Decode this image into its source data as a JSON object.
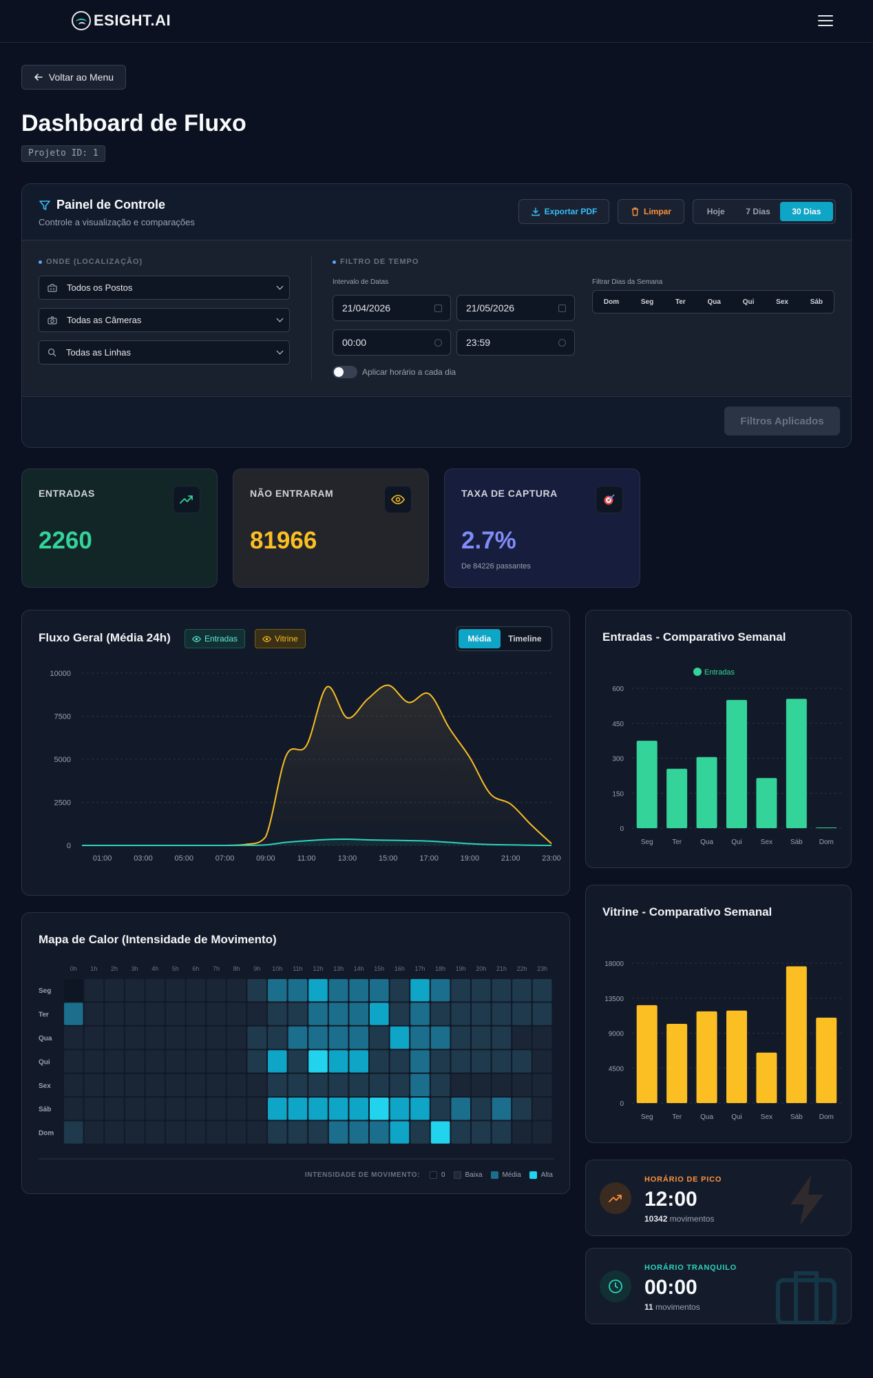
{
  "header": {
    "brand": "ESIGHT.AI",
    "brand_icon": "eye-logo-icon",
    "menu_icon": "hamburger-menu-icon"
  },
  "nav": {
    "back_label": "Voltar ao Menu"
  },
  "page": {
    "title": "Dashboard de Fluxo",
    "project_id": "Projeto ID: 1"
  },
  "control_panel": {
    "title": "Painel de Controle",
    "subtitle": "Controle a visualização e comparações",
    "export_label": "Exportar PDF",
    "clear_label": "Limpar",
    "ranges": [
      "Hoje",
      "7 Dias",
      "30 Dias"
    ],
    "active_range": "30 Dias",
    "location_section": "ONDE (LOCALIZAÇÃO)",
    "post_select": "Todos os Postos",
    "camera_select": "Todas as Câmeras",
    "line_select": "Todas as Linhas",
    "time_section": "FILTRO DE TEMPO",
    "date_interval_label": "Intervalo de Datas",
    "date_start": "21/04/2026",
    "date_end": "21/05/2026",
    "time_start": "00:00",
    "time_end": "23:59",
    "apply_daily_label": "Aplicar horário a cada dia",
    "apply_daily_on": false,
    "weekdays_label": "Filtrar Dias da Semana",
    "weekdays": [
      "Dom",
      "Seg",
      "Ter",
      "Qua",
      "Qui",
      "Sex",
      "Sáb"
    ],
    "applied_label": "Filtros Aplicados"
  },
  "kpis": {
    "entries": {
      "label": "ENTRADAS",
      "value": "2260",
      "color": "#34d399"
    },
    "not_entered": {
      "label": "NÃO ENTRARAM",
      "value": "81966",
      "color": "#fbbf24"
    },
    "capture_rate": {
      "label": "TAXA DE CAPTURA",
      "value": "2.7%",
      "sub": "De 84226 passantes",
      "color": "#818cf8"
    }
  },
  "flow_chart": {
    "title": "Fluxo Geral (Média 24h)",
    "badge_entries": "Entradas",
    "badge_showcase": "Vitrine",
    "modes": [
      "Média",
      "Timeline"
    ],
    "active_mode": "Média"
  },
  "heatmap": {
    "title": "Mapa de Calor (Intensidade de Movimento)",
    "legend_caption": "INTENSIDADE DE MOVIMENTO:",
    "legend": [
      "0",
      "Baixa",
      "Média",
      "Alta"
    ]
  },
  "weekly_entries": {
    "title": "Entradas - Comparativo Semanal",
    "legend": "Entradas"
  },
  "weekly_showcase": {
    "title": "Vitrine - Comparativo Semanal"
  },
  "peak": {
    "caption": "HORÁRIO DE PICO",
    "time": "12:00",
    "count": "10342",
    "unit": "movimentos"
  },
  "quiet": {
    "caption": "HORÁRIO TRANQUILO",
    "time": "00:00",
    "count": "11",
    "unit": "movimentos"
  },
  "chart_data": [
    {
      "type": "area",
      "title": "Fluxo Geral (Média 24h)",
      "x": [
        "00:00",
        "01:00",
        "02:00",
        "03:00",
        "04:00",
        "05:00",
        "06:00",
        "07:00",
        "08:00",
        "09:00",
        "10:00",
        "11:00",
        "12:00",
        "13:00",
        "14:00",
        "15:00",
        "16:00",
        "17:00",
        "18:00",
        "19:00",
        "20:00",
        "21:00",
        "22:00",
        "23:00"
      ],
      "xticks": [
        "01:00",
        "03:00",
        "05:00",
        "07:00",
        "09:00",
        "11:00",
        "13:00",
        "15:00",
        "17:00",
        "19:00",
        "21:00",
        "23:00"
      ],
      "yticks": [
        0,
        2500,
        5000,
        7500,
        10000
      ],
      "ylim": [
        0,
        10000
      ],
      "series": [
        {
          "name": "Vitrine",
          "color": "#fbbf24",
          "values": [
            0,
            0,
            0,
            0,
            0,
            0,
            0,
            0,
            50,
            500,
            5200,
            5800,
            9200,
            7400,
            8500,
            9300,
            8300,
            8800,
            6800,
            5100,
            3000,
            2400,
            1200,
            100
          ]
        },
        {
          "name": "Entradas",
          "color": "#2dd4bf",
          "values": [
            0,
            0,
            0,
            0,
            0,
            0,
            0,
            0,
            5,
            30,
            180,
            270,
            340,
            360,
            320,
            300,
            280,
            250,
            180,
            100,
            50,
            30,
            10,
            0
          ]
        }
      ]
    },
    {
      "type": "heatmap",
      "title": "Mapa de Calor (Intensidade de Movimento)",
      "columns": [
        "0h",
        "1h",
        "2h",
        "3h",
        "4h",
        "5h",
        "6h",
        "7h",
        "8h",
        "9h",
        "10h",
        "11h",
        "12h",
        "13h",
        "14h",
        "15h",
        "16h",
        "17h",
        "18h",
        "19h",
        "20h",
        "21h",
        "22h",
        "23h"
      ],
      "rows": [
        "Seg",
        "Ter",
        "Qua",
        "Qui",
        "Sex",
        "Sáb",
        "Dom"
      ],
      "values": [
        [
          0,
          1,
          1,
          1,
          1,
          1,
          1,
          1,
          1,
          2,
          3,
          3,
          4,
          3,
          3,
          3,
          2,
          4,
          3,
          2,
          2,
          2,
          2,
          2
        ],
        [
          3,
          1,
          1,
          1,
          1,
          1,
          1,
          1,
          1,
          1,
          2,
          2,
          3,
          3,
          3,
          4,
          2,
          3,
          2,
          2,
          2,
          2,
          2,
          2
        ],
        [
          1,
          1,
          1,
          1,
          1,
          1,
          1,
          1,
          1,
          2,
          2,
          3,
          3,
          3,
          3,
          2,
          4,
          3,
          3,
          2,
          2,
          2,
          1,
          1
        ],
        [
          1,
          1,
          1,
          1,
          1,
          1,
          1,
          1,
          1,
          2,
          4,
          2,
          5,
          4,
          4,
          2,
          2,
          3,
          2,
          2,
          2,
          2,
          2,
          1
        ],
        [
          1,
          1,
          1,
          1,
          1,
          1,
          1,
          1,
          1,
          1,
          2,
          2,
          2,
          2,
          2,
          2,
          2,
          3,
          2,
          1,
          1,
          1,
          1,
          1
        ],
        [
          1,
          1,
          1,
          1,
          1,
          1,
          1,
          1,
          1,
          1,
          4,
          4,
          4,
          4,
          4,
          5,
          4,
          4,
          2,
          3,
          2,
          3,
          2,
          1
        ],
        [
          2,
          1,
          1,
          1,
          1,
          1,
          1,
          1,
          1,
          1,
          2,
          2,
          2,
          3,
          3,
          3,
          4,
          2,
          5,
          2,
          2,
          2,
          1,
          1
        ]
      ]
    },
    {
      "type": "bar",
      "title": "Entradas - Comparativo Semanal",
      "categories": [
        "Seg",
        "Ter",
        "Qua",
        "Qui",
        "Sex",
        "Sáb",
        "Dom"
      ],
      "yticks": [
        0,
        150,
        300,
        450,
        600
      ],
      "ylim": [
        0,
        600
      ],
      "series": [
        {
          "name": "Entradas",
          "color": "#34d399",
          "values": [
            375,
            255,
            305,
            550,
            215,
            555,
            3
          ]
        }
      ]
    },
    {
      "type": "bar",
      "title": "Vitrine - Comparativo Semanal",
      "categories": [
        "Seg",
        "Ter",
        "Qua",
        "Qui",
        "Sex",
        "Sáb",
        "Dom"
      ],
      "yticks": [
        0,
        4500,
        9000,
        13500,
        18000
      ],
      "ylim": [
        0,
        18000
      ],
      "series": [
        {
          "color": "#fbbf24",
          "values": [
            12600,
            10200,
            11800,
            11900,
            6500,
            17600,
            11000
          ]
        }
      ]
    }
  ]
}
